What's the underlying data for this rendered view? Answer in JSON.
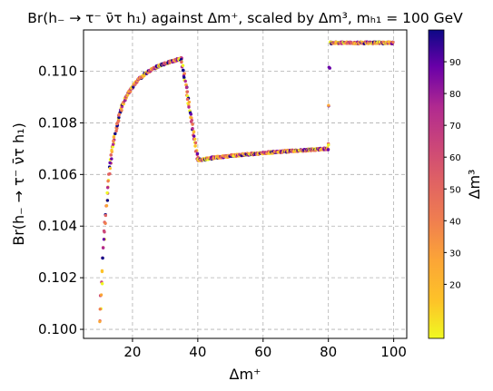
{
  "chart_data": {
    "type": "scatter",
    "title": "Br(h₋ → τ⁻ ν̄τ h₁) against Δm⁺, scaled by Δm³, mₕ₁ = 100 GeV",
    "xlabel": "Δm⁺",
    "ylabel": "Br(h₋ → τ⁻ ν̄τ h₁)",
    "colorbar_label": "Δm³",
    "colormap": "plasma_r",
    "xlim": [
      5,
      104
    ],
    "ylim": [
      0.09965,
      0.1116
    ],
    "xticks": [
      20,
      40,
      60,
      80,
      100
    ],
    "yticks": [
      0.1,
      0.102,
      0.104,
      0.106,
      0.108,
      0.11
    ],
    "ytick_labels": [
      "0.100",
      "0.102",
      "0.104",
      "0.106",
      "0.108",
      "0.110"
    ],
    "colorbar_range": [
      3,
      100
    ],
    "colorbar_ticks": [
      20,
      30,
      40,
      50,
      60,
      70,
      80,
      90
    ],
    "grid": true,
    "curve": {
      "x": [
        10,
        10.5,
        11,
        12,
        13,
        14,
        15,
        16,
        17,
        18,
        20,
        22,
        25,
        28,
        30,
        35,
        40,
        45,
        50,
        55,
        60,
        65,
        70,
        75,
        80,
        80.5,
        85,
        90,
        95,
        100
      ],
      "y": [
        0.1003,
        0.1017,
        0.103,
        0.1048,
        0.1062,
        0.1071,
        0.1078,
        0.1083,
        0.1087,
        0.109,
        0.1094,
        0.1097,
        0.11,
        0.1102,
        0.1103,
        0.1105,
        0.10655,
        0.10665,
        0.10672,
        0.10678,
        0.10683,
        0.10688,
        0.10692,
        0.10696,
        0.107,
        0.1111,
        0.1111,
        0.1111,
        0.1111,
        0.1111
      ]
    }
  }
}
